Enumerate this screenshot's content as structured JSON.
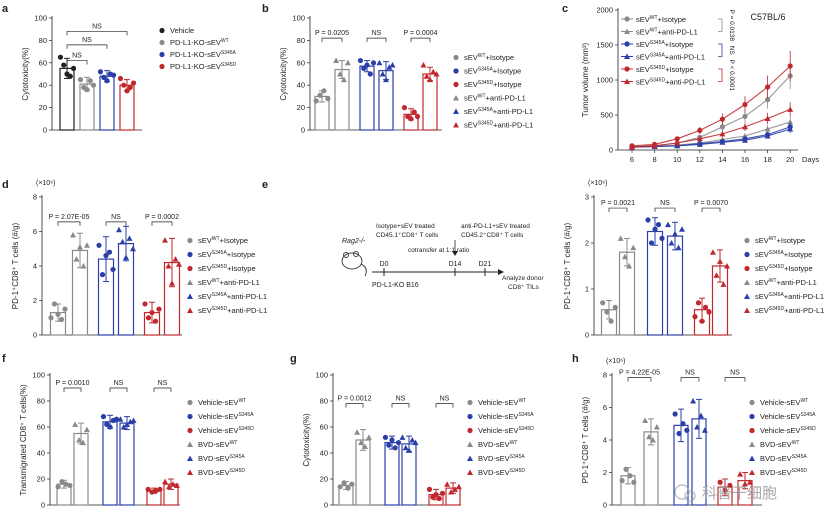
{
  "colors": {
    "black": "#222222",
    "gray": "#8a8a8a",
    "blue": "#2b3fa8",
    "red": "#c0282d",
    "pink": "#e58a8a",
    "lightgray": "#b8b8b8"
  },
  "panels": {
    "a": {
      "letter": "a",
      "ylabel": "Cytotoxicity(%)",
      "ticks": [
        "0",
        "20",
        "40",
        "60",
        "80",
        "100"
      ],
      "bars": [
        {
          "c": "black",
          "v": 55,
          "err": 9,
          "pts": [
            65,
            58,
            50,
            48,
            55
          ]
        },
        {
          "c": "gray",
          "v": 41,
          "err": 6,
          "pts": [
            45,
            38,
            36,
            44,
            40
          ]
        },
        {
          "c": "blue",
          "v": 48,
          "err": 5,
          "pts": [
            52,
            47,
            44,
            50,
            49
          ]
        },
        {
          "c": "red",
          "v": 40,
          "err": 5,
          "pts": [
            46,
            40,
            35,
            38,
            42
          ]
        }
      ],
      "stats": [
        "NS",
        "NS",
        "NS"
      ],
      "legend": [
        {
          "c": "black",
          "t": "Vehicle"
        },
        {
          "c": "gray",
          "t": "PD-L1-KO-sEV",
          "sup": "WT"
        },
        {
          "c": "blue",
          "t": "PD-L1-KO-sEV",
          "sup": "S345A"
        },
        {
          "c": "red",
          "t": "PD-L1-KO-sEV",
          "sup": "S345D"
        }
      ]
    },
    "b": {
      "letter": "b",
      "ylabel": "Cytotoxicity(%)",
      "ticks": [
        "0",
        "20",
        "40",
        "60",
        "80",
        "100"
      ],
      "bars": [
        {
          "c": "gray",
          "v": 30,
          "err": 5,
          "pts": [
            26,
            31,
            35,
            28
          ]
        },
        {
          "c": "gray",
          "v": 54,
          "err": 8,
          "pts": [
            62,
            50,
            45,
            60
          ]
        },
        {
          "c": "blue",
          "v": 57,
          "err": 5,
          "pts": [
            62,
            55,
            58,
            50,
            60
          ]
        },
        {
          "c": "blue",
          "v": 53,
          "err": 8,
          "pts": [
            60,
            50,
            45,
            56,
            58
          ]
        },
        {
          "c": "red",
          "v": 14,
          "err": 5,
          "pts": [
            20,
            12,
            10,
            16,
            12
          ]
        },
        {
          "c": "red",
          "v": 50,
          "err": 6,
          "pts": [
            58,
            48,
            45,
            52,
            50
          ]
        }
      ],
      "stats": [
        "P = 0.0205",
        "NS",
        "P = 0.0004"
      ],
      "legend": [
        {
          "c": "gray",
          "t": "sEV",
          "sup": "WT",
          "t2": "+Isotype"
        },
        {
          "c": "blue",
          "t": "sEV",
          "sup": "S345A",
          "t2": "+Isotype"
        },
        {
          "c": "red",
          "t": "sEV",
          "sup": "S345D",
          "t2": "+Isotype"
        },
        {
          "c": "gray",
          "t": "sEV",
          "sup": "WT",
          "t2": "+anti-PD-L1",
          "tri": true
        },
        {
          "c": "blue",
          "t": "sEV",
          "sup": "S345A",
          "t2": "+anti-PD-L1",
          "tri": true
        },
        {
          "c": "red",
          "t": "sEV",
          "sup": "S345D",
          "t2": "+anti-PD-L1",
          "tri": true
        }
      ]
    },
    "c": {
      "letter": "c",
      "title": "C57BL/6",
      "ylabel": "Tumor volume (mm³)",
      "xlabel": "Days",
      "ticks": [
        "0",
        "500",
        "1000",
        "1500",
        "2000"
      ],
      "xticks": [
        "6",
        "8",
        "10",
        "12",
        "14",
        "16",
        "18",
        "20"
      ],
      "series": [
        {
          "c": "gray",
          "name": "sEV",
          "sup": "WT",
          "n2": "+Isotype",
          "v": [
            50,
            60,
            100,
            180,
            330,
            480,
            720,
            1060
          ]
        },
        {
          "c": "gray",
          "name": "sEV",
          "sup": "WT",
          "n2": "+anti-PD-L1",
          "tri": true,
          "v": [
            40,
            50,
            70,
            100,
            150,
            200,
            300,
            400
          ]
        },
        {
          "c": "blue",
          "name": "sEV",
          "sup": "S345A",
          "n2": "+Isotype",
          "v": [
            40,
            50,
            60,
            90,
            120,
            160,
            220,
            330
          ]
        },
        {
          "c": "blue",
          "name": "sEV",
          "sup": "S345A",
          "n2": "+anti-PD-L1",
          "tri": true,
          "v": [
            40,
            50,
            60,
            80,
            110,
            140,
            200,
            300
          ]
        },
        {
          "c": "red",
          "name": "sEV",
          "sup": "S345D",
          "n2": "+Isotype",
          "v": [
            60,
            80,
            160,
            280,
            440,
            650,
            900,
            1200
          ]
        },
        {
          "c": "red",
          "name": "sEV",
          "sup": "S345D",
          "n2": "+anti-PD-L1",
          "tri": true,
          "v": [
            40,
            60,
            100,
            160,
            230,
            330,
            450,
            580
          ]
        }
      ],
      "stats": [
        "P = 0.0138",
        "NS",
        "P < 0.0001"
      ]
    },
    "d": {
      "letter": "d",
      "scale": "(×10⁶)",
      "ylabel": "PD-1⁺CD8⁺ T cells (#/g)",
      "ticks": [
        "0",
        "2",
        "4",
        "6",
        "8"
      ],
      "bars": [
        {
          "c": "gray",
          "v": 1.3,
          "err": 0.5,
          "pts": [
            1.0,
            1.8,
            1.2,
            0.9,
            1.5
          ]
        },
        {
          "c": "gray",
          "v": 4.9,
          "err": 1.0,
          "pts": [
            5.8,
            4.4,
            5.1,
            4.0,
            5.2
          ]
        },
        {
          "c": "blue",
          "v": 4.4,
          "err": 1.3,
          "pts": [
            5.2,
            3.5,
            4.6,
            4.8,
            3.8
          ]
        },
        {
          "c": "blue",
          "v": 5.3,
          "err": 1.0,
          "pts": [
            6.1,
            5.4,
            4.5,
            5.6,
            5.0
          ]
        },
        {
          "c": "red",
          "v": 1.3,
          "err": 0.6,
          "pts": [
            1.8,
            1.0,
            1.3,
            0.8,
            1.5
          ]
        },
        {
          "c": "red",
          "v": 4.2,
          "err": 1.4,
          "pts": [
            5.5,
            4.0,
            3.0,
            4.4,
            4.1
          ]
        }
      ],
      "stats": [
        "P = 2.07E-05",
        "NS",
        "P = 0.0002"
      ],
      "legend": [
        {
          "c": "gray",
          "t": "sEV",
          "sup": "WT",
          "t2": "+Isotype"
        },
        {
          "c": "blue",
          "t": "sEV",
          "sup": "S345A",
          "t2": "+Isotype"
        },
        {
          "c": "red",
          "t": "sEV",
          "sup": "S345D",
          "t2": "+Isotype"
        },
        {
          "c": "gray",
          "t": "sEV",
          "sup": "WT",
          "t2": "+anti-PD-L1",
          "tri": true
        },
        {
          "c": "blue",
          "t": "sEV",
          "sup": "S345A",
          "t2": "+anti-PD-L1",
          "tri": true
        },
        {
          "c": "red",
          "t": "sEV",
          "sup": "S345D",
          "t2": "+anti-PD-L1",
          "tri": true
        }
      ]
    },
    "e": {
      "letter": "e",
      "mouse": "Rag2-/-",
      "t1": "Isotype+sEV treated",
      "t1b": "CD45.1⁺CD8⁺ T cells",
      "t2": "anti-PD-L1+sEV treated",
      "t2b": "CD45.2⁺CD8⁺ T cells",
      "t3": "cotransfer at 1:1 ratio",
      "d0": "D0",
      "d14": "D14",
      "d21": "D21",
      "tumor": "PD-L1-KO B16",
      "analyze": "Analyze donor",
      "analyze2": "CD8⁺ TILs",
      "scale": "(×10⁶)",
      "ylabel": "PD-1⁺CD8⁺ T cells (#/g)",
      "ticks": [
        "0",
        "1",
        "2",
        "3"
      ],
      "bars": [
        {
          "c": "gray",
          "v": 0.55,
          "err": 0.2,
          "pts": [
            0.7,
            0.5,
            0.3,
            0.6
          ]
        },
        {
          "c": "gray",
          "v": 1.8,
          "err": 0.3,
          "pts": [
            2.1,
            1.7,
            1.5,
            1.9
          ]
        },
        {
          "c": "blue",
          "v": 2.25,
          "err": 0.3,
          "pts": [
            2.5,
            2.0,
            2.3,
            2.4,
            2.1
          ]
        },
        {
          "c": "blue",
          "v": 2.15,
          "err": 0.3,
          "pts": [
            2.4,
            2.0,
            2.2,
            1.9,
            2.3
          ]
        },
        {
          "c": "red",
          "v": 0.55,
          "err": 0.25,
          "pts": [
            0.4,
            0.7,
            0.3,
            0.6,
            0.5
          ]
        },
        {
          "c": "red",
          "v": 1.5,
          "err": 0.35,
          "pts": [
            1.8,
            1.3,
            1.6,
            1.1,
            1.5
          ]
        }
      ],
      "stats": [
        "P = 0.0021",
        "NS",
        "P = 0.0070"
      ],
      "legend": [
        {
          "c": "gray",
          "t": "sEV",
          "sup": "WT",
          "t2": "+Isotype"
        },
        {
          "c": "blue",
          "t": "sEV",
          "sup": "S345A",
          "t2": "+Isotype"
        },
        {
          "c": "red",
          "t": "sEV",
          "sup": "S345D",
          "t2": "+Isotype"
        },
        {
          "c": "gray",
          "t": "sEV",
          "sup": "WT",
          "t2": "+anti-PD-L1",
          "tri": true
        },
        {
          "c": "blue",
          "t": "sEV",
          "sup": "S345A",
          "t2": "+anti-PD-L1",
          "tri": true
        },
        {
          "c": "red",
          "t": "sEV",
          "sup": "S345D",
          "t2": "+anti-PD-L1",
          "tri": true
        }
      ]
    },
    "f": {
      "letter": "f",
      "ylabel": "Transmigrated CD8⁺ T cells(%)",
      "ticks": [
        "0",
        "20",
        "40",
        "60",
        "80",
        "100"
      ],
      "bars": [
        {
          "c": "gray",
          "v": 16,
          "err": 3,
          "pts": [
            14,
            18,
            16,
            15
          ]
        },
        {
          "c": "gray",
          "v": 55,
          "err": 8,
          "pts": [
            62,
            50,
            48,
            58
          ]
        },
        {
          "c": "blue",
          "v": 64,
          "err": 5,
          "pts": [
            68,
            62,
            60,
            65,
            66
          ]
        },
        {
          "c": "blue",
          "v": 63,
          "err": 5,
          "pts": [
            66,
            60,
            62,
            64,
            65
          ]
        },
        {
          "c": "red",
          "v": 11,
          "err": 2,
          "pts": [
            12,
            10,
            11,
            12
          ]
        },
        {
          "c": "red",
          "v": 16,
          "err": 4,
          "pts": [
            18,
            14,
            16,
            15
          ]
        }
      ],
      "stats": [
        "P = 0.0010",
        "NS",
        "NS"
      ],
      "legend": [
        {
          "c": "gray",
          "t": "Vehicle-sEV",
          "sup": "WT"
        },
        {
          "c": "blue",
          "t": "Vehicle-sEV",
          "sup": "S345A"
        },
        {
          "c": "red",
          "t": "Vehicle-sEV",
          "sup": "S345D"
        },
        {
          "c": "gray",
          "t": "BVD-sEV",
          "sup": "WT",
          "tri": true
        },
        {
          "c": "blue",
          "t": "BVD-sEV",
          "sup": "S345A",
          "tri": true
        },
        {
          "c": "red",
          "t": "BVD-sEV",
          "sup": "S345D",
          "tri": true
        }
      ]
    },
    "g": {
      "letter": "g",
      "ylabel": "Cytotoxicity(%)",
      "ticks": [
        "0",
        "20",
        "40",
        "60",
        "80",
        "100"
      ],
      "bars": [
        {
          "c": "gray",
          "v": 15,
          "err": 3,
          "pts": [
            14,
            17,
            13,
            16
          ]
        },
        {
          "c": "gray",
          "v": 50,
          "err": 8,
          "pts": [
            56,
            48,
            45,
            52
          ]
        },
        {
          "c": "blue",
          "v": 48,
          "err": 5,
          "pts": [
            52,
            46,
            50,
            44,
            48
          ]
        },
        {
          "c": "blue",
          "v": 47,
          "err": 6,
          "pts": [
            52,
            44,
            42,
            50,
            48
          ]
        },
        {
          "c": "red",
          "v": 8,
          "err": 4,
          "pts": [
            12,
            6,
            8,
            5,
            9
          ]
        },
        {
          "c": "red",
          "v": 13,
          "err": 4,
          "pts": [
            16,
            10,
            12,
            14
          ]
        }
      ],
      "stats": [
        "P = 0.0012",
        "NS",
        "NS"
      ],
      "legend": [
        {
          "c": "gray",
          "t": "Vehicle-sEV",
          "sup": "WT"
        },
        {
          "c": "blue",
          "t": "Vehicle-sEV",
          "sup": "S345A"
        },
        {
          "c": "red",
          "t": "Vehicle-sEV",
          "sup": "S345D"
        },
        {
          "c": "gray",
          "t": "BVD-sEV",
          "sup": "WT",
          "tri": true
        },
        {
          "c": "blue",
          "t": "BVD-sEV",
          "sup": "S345A",
          "tri": true
        },
        {
          "c": "red",
          "t": "BVD-sEV",
          "sup": "S345D",
          "tri": true
        }
      ]
    },
    "h": {
      "letter": "h",
      "scale": "(×10⁶)",
      "ylabel": "PD-1⁺CD8⁺ T cells (#/g)",
      "ticks": [
        "0",
        "2",
        "4",
        "6",
        "8"
      ],
      "bars": [
        {
          "c": "gray",
          "v": 1.8,
          "err": 0.5,
          "pts": [
            1.5,
            2.2,
            1.8,
            1.4
          ]
        },
        {
          "c": "gray",
          "v": 4.5,
          "err": 0.8,
          "pts": [
            5.2,
            4.2,
            4.0,
            4.8
          ]
        },
        {
          "c": "blue",
          "v": 4.9,
          "err": 1.0,
          "pts": [
            5.6,
            4.4,
            5.0,
            4.6
          ]
        },
        {
          "c": "blue",
          "v": 5.3,
          "err": 1.2,
          "pts": [
            6.4,
            4.8,
            5.5,
            4.6
          ]
        },
        {
          "c": "red",
          "v": 1.1,
          "err": 0.5,
          "pts": [
            1.4,
            0.9,
            1.2
          ]
        },
        {
          "c": "red",
          "v": 1.5,
          "err": 0.5,
          "pts": [
            1.9,
            1.3,
            1.4
          ]
        }
      ],
      "stats": [
        "P = 4.22E-05",
        "NS",
        "NS"
      ],
      "legend": [
        {
          "c": "gray",
          "t": "Vehicle-sEV",
          "sup": "WT"
        },
        {
          "c": "blue",
          "t": "Vehicle-sEV",
          "sup": "S345A"
        },
        {
          "c": "red",
          "t": "Vehicle-sEV",
          "sup": "S345D"
        },
        {
          "c": "gray",
          "t": "BVD-sEV",
          "sup": "WT",
          "tri": true
        },
        {
          "c": "blue",
          "t": "BVD-sEV",
          "sup": "S345A",
          "tri": true
        },
        {
          "c": "red",
          "t": "BVD-sEV",
          "sup": "S345D",
          "tri": true
        }
      ]
    }
  },
  "watermark": "科普干细胞",
  "chart_data": [
    {
      "panel": "a",
      "type": "bar",
      "ylabel": "Cytotoxicity(%)",
      "ylim": [
        0,
        100
      ],
      "categories": [
        "Vehicle",
        "PD-L1-KO-sEVWT",
        "PD-L1-KO-sEVS345A",
        "PD-L1-KO-sEVS345D"
      ],
      "values": [
        55,
        41,
        48,
        40
      ]
    },
    {
      "panel": "b",
      "type": "bar",
      "ylabel": "Cytotoxicity(%)",
      "ylim": [
        0,
        100
      ],
      "categories": [
        "sEVWT+Isotype",
        "sEVWT+anti-PD-L1",
        "sEVS345A+Isotype",
        "sEVS345A+anti-PD-L1",
        "sEVS345D+Isotype",
        "sEVS345D+anti-PD-L1"
      ],
      "values": [
        30,
        54,
        57,
        53,
        14,
        50
      ]
    },
    {
      "panel": "c",
      "type": "line",
      "title": "C57BL/6",
      "xlabel": "Days",
      "ylabel": "Tumor volume (mm³)",
      "ylim": [
        0,
        2000
      ],
      "x": [
        6,
        8,
        10,
        12,
        14,
        16,
        18,
        20
      ]
    },
    {
      "panel": "d",
      "type": "bar",
      "ylabel": "PD-1⁺CD8⁺ T cells (#/g)",
      "ylim": [
        0,
        8
      ],
      "values": [
        1.3,
        4.9,
        4.4,
        5.3,
        1.3,
        4.2
      ]
    },
    {
      "panel": "e",
      "type": "bar",
      "ylabel": "PD-1⁺CD8⁺ T cells (#/g)",
      "ylim": [
        0,
        3
      ],
      "values": [
        0.55,
        1.8,
        2.25,
        2.15,
        0.55,
        1.5
      ]
    },
    {
      "panel": "f",
      "type": "bar",
      "ylabel": "Transmigrated CD8⁺ T cells(%)",
      "ylim": [
        0,
        100
      ],
      "values": [
        16,
        55,
        64,
        63,
        11,
        16
      ]
    },
    {
      "panel": "g",
      "type": "bar",
      "ylabel": "Cytotoxicity(%)",
      "ylim": [
        0,
        100
      ],
      "values": [
        15,
        50,
        48,
        47,
        8,
        13
      ]
    },
    {
      "panel": "h",
      "type": "bar",
      "ylabel": "PD-1⁺CD8⁺ T cells (#/g)",
      "ylim": [
        0,
        8
      ],
      "values": [
        1.8,
        4.5,
        4.9,
        5.3,
        1.1,
        1.5
      ]
    }
  ]
}
